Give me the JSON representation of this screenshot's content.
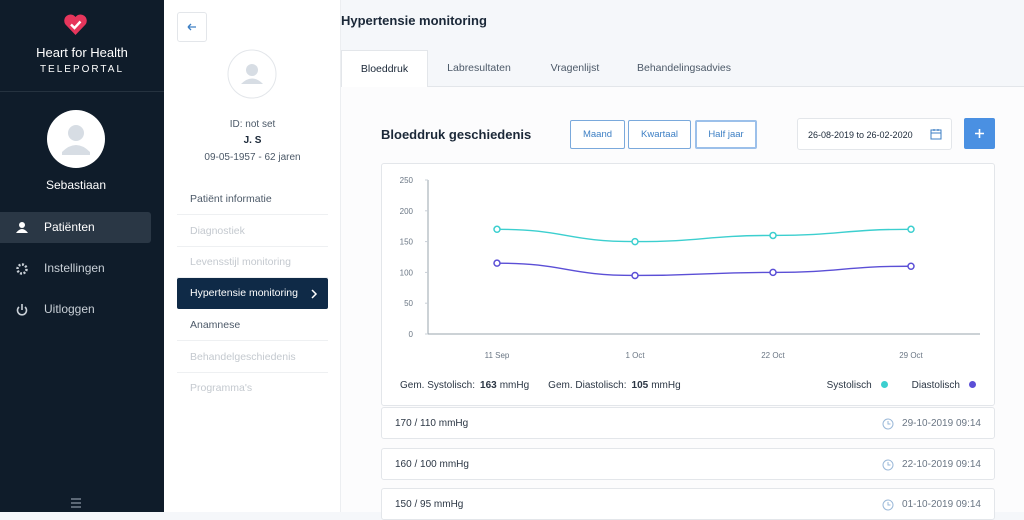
{
  "sidebar": {
    "brand": "Heart for Health",
    "subtitle": "TELEPORTAL",
    "user": "Sebastiaan",
    "nav": [
      "Patiënten",
      "Instellingen",
      "Uitloggen"
    ]
  },
  "patient": {
    "id": "ID: not set",
    "name": "J. S",
    "birth": "09-05-1957 - 62 jaren",
    "menu": [
      "Patiënt informatie",
      "Diagnostiek",
      "Levensstijl monitoring",
      "Hypertensie monitoring",
      "Anamnese",
      "Behandelgeschiedenis",
      "Programma's"
    ]
  },
  "header": {
    "title": "Hypertensie monitoring"
  },
  "tabs": [
    "Bloeddruk",
    "Labresultaten",
    "Vragenlijst",
    "Behandelingsadvies"
  ],
  "section": {
    "title": "Bloeddruk geschiedenis",
    "periods": [
      "Maand",
      "Kwartaal",
      "Half jaar"
    ],
    "date_range": "26-08-2019 to 26-02-2020"
  },
  "chart_data": {
    "type": "line",
    "categories": [
      "11 Sep",
      "1 Oct",
      "22 Oct",
      "29 Oct"
    ],
    "series": [
      {
        "name": "Systolisch",
        "color": "#3ccfcf",
        "values": [
          170,
          150,
          160,
          170
        ]
      },
      {
        "name": "Diastolisch",
        "color": "#5b4fd6",
        "values": [
          115,
          95,
          100,
          110
        ]
      }
    ],
    "ylim": [
      0,
      250
    ],
    "yticks": [
      0,
      50,
      100,
      150,
      200,
      250
    ],
    "grid": false,
    "legend": "bottom-right"
  },
  "averages": [
    {
      "label": "Gem. Systolisch:",
      "value": 163,
      "unit": "mmHg"
    },
    {
      "label": "Gem. Diastolisch:",
      "value": 105,
      "unit": "mmHg"
    }
  ],
  "readings": [
    {
      "value": "170 / 110 mmHg",
      "date": "29-10-2019 09:14"
    },
    {
      "value": "160 / 100 mmHg",
      "date": "22-10-2019 09:14"
    },
    {
      "value": "150 / 95 mmHg",
      "date": "01-10-2019 09:14"
    }
  ]
}
